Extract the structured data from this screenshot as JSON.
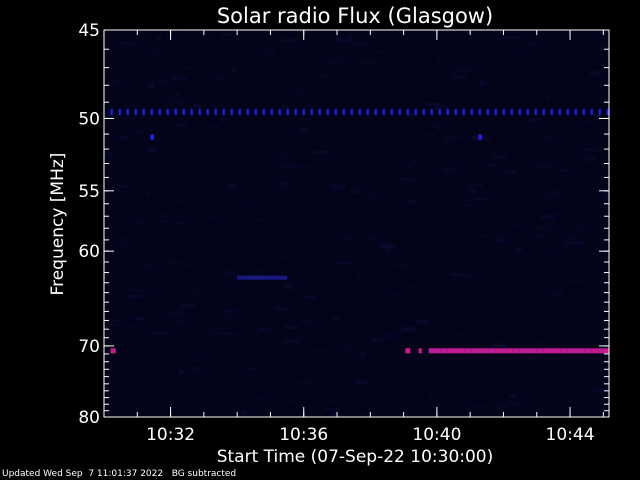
{
  "chart_data": {
    "type": "heatmap",
    "title": "Solar radio Flux (Glasgow)",
    "xlabel": "Start Time (07-Sep-22 10:30:00)",
    "ylabel": "Frequency [MHz]",
    "x_unit": "minutes after 10:30:00",
    "xlim": [
      0,
      15.17
    ],
    "ylim": [
      45,
      80
    ],
    "y_scale": "reciprocal (1/frequency)",
    "x_ticks": [
      {
        "value": 2,
        "label": "10:32"
      },
      {
        "value": 6,
        "label": "10:36"
      },
      {
        "value": 10,
        "label": "10:40"
      },
      {
        "value": 14,
        "label": "10:44"
      }
    ],
    "y_ticks": [
      {
        "value": 45,
        "label": "45"
      },
      {
        "value": 50,
        "label": "50"
      },
      {
        "value": 55,
        "label": "55"
      },
      {
        "value": 60,
        "label": "60"
      },
      {
        "value": 70,
        "label": "70"
      },
      {
        "value": 80,
        "label": "80"
      }
    ],
    "features": [
      {
        "name": "interference-line-49.6MHz",
        "freq": 49.6,
        "t_start": 0.2,
        "t_end": 15.17,
        "intensity": "medium",
        "color": "#2323ff",
        "pattern": "dashed"
      },
      {
        "name": "interference-line-70.6MHz",
        "freq": 70.6,
        "t_start": 9.05,
        "t_end": 15.17,
        "intensity": "high",
        "color": "#cc1a88",
        "pattern": "segments"
      },
      {
        "name": "interference-blip-70.6MHz-start",
        "freq": 70.6,
        "t_start": 0.2,
        "t_end": 0.35,
        "intensity": "high",
        "color": "#cc1a88",
        "pattern": "solid"
      },
      {
        "name": "faint-patch-62.5MHz",
        "freq": 62.5,
        "t_start": 4.0,
        "t_end": 5.5,
        "intensity": "low",
        "color": "#2a2ad8",
        "pattern": "solid"
      },
      {
        "name": "dot-51.2MHz-a",
        "freq": 51.2,
        "t_start": 1.4,
        "t_end": 1.5,
        "intensity": "medium",
        "color": "#2323ff",
        "pattern": "solid"
      },
      {
        "name": "dot-51.2MHz-b",
        "freq": 51.2,
        "t_start": 11.25,
        "t_end": 11.35,
        "intensity": "medium",
        "color": "#2323ff",
        "pattern": "solid"
      }
    ],
    "background_color": "#03031a",
    "axis_color": "#ffffff"
  },
  "footer": {
    "updated": "Updated Wed Sep  7 11:01:37 2022",
    "note": "BG subtracted"
  }
}
